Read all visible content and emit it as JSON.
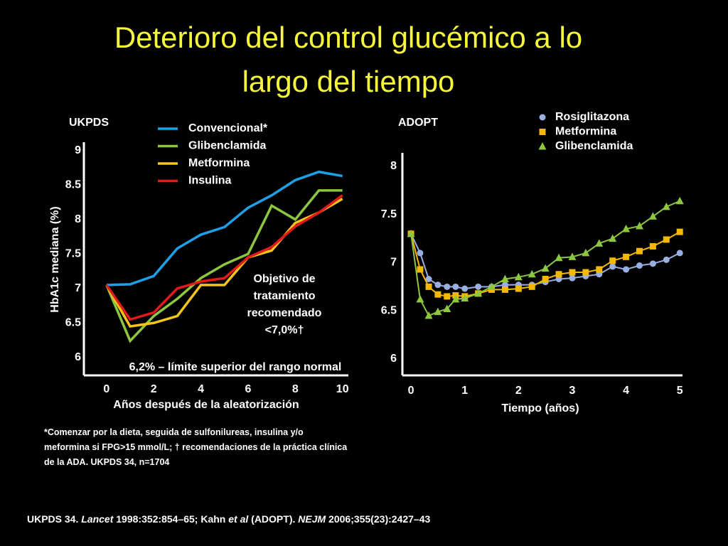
{
  "title": "Deterioro del control glucémico a lo largo del tiempo",
  "footnote": "*Comenzar por la dieta, seguida de sulfonilureas, insulina y/o meformina si FPG>15 mmol/L; † recomendaciones de la práctica clínica de la ADA. UKPDS 34, n=1704",
  "reference": [
    {
      "text": "UKPDS 34. ",
      "italic": false
    },
    {
      "text": "Lancet",
      "italic": true
    },
    {
      "text": " 1998:352:854–65; Kahn ",
      "italic": false
    },
    {
      "text": "et al",
      "italic": true
    },
    {
      "text": " (ADOPT). ",
      "italic": false
    },
    {
      "text": "NEJM",
      "italic": true
    },
    {
      "text": " 2006;355(23):2427–43",
      "italic": false
    }
  ],
  "chart_data": [
    {
      "type": "line",
      "title": "UKPDS",
      "x_label": "Años después de la aleatorización",
      "y_label": "HbA1c mediana (%)",
      "x": [
        0,
        1,
        2,
        3,
        4,
        5,
        6,
        7,
        8,
        9,
        10
      ],
      "series": [
        {
          "name": "Convencional*",
          "color": "#1ea0e6",
          "values": [
            7.05,
            7.06,
            7.18,
            7.58,
            7.78,
            7.89,
            8.17,
            8.35,
            8.57,
            8.69,
            8.63
          ]
        },
        {
          "name": "Glibenclamida",
          "color": "#8dc63f",
          "values": [
            7.05,
            6.24,
            6.6,
            6.85,
            7.15,
            7.35,
            7.5,
            8.2,
            8.0,
            8.42,
            8.42
          ]
        },
        {
          "name": "Metformina",
          "color": "#f5c518",
          "values": [
            7.05,
            6.45,
            6.5,
            6.6,
            7.05,
            7.05,
            7.45,
            7.55,
            7.95,
            8.1,
            8.3
          ]
        },
        {
          "name": "Insulina",
          "color": "#e31a1c",
          "values": [
            7.05,
            6.55,
            6.65,
            7.0,
            7.1,
            7.15,
            7.45,
            7.6,
            7.9,
            8.1,
            8.35
          ]
        }
      ],
      "xlim": [
        -0.96,
        10.25
      ],
      "ylim": [
        5.74,
        9.12
      ],
      "xticks": [
        0,
        2,
        4,
        6,
        8,
        10
      ],
      "yticks": [
        6,
        6.5,
        7,
        7.5,
        8,
        8.5,
        9
      ],
      "annotations": [
        [
          "Objetivo de",
          "tratamiento",
          "recomendado",
          "<7,0%†"
        ],
        [
          "6,2% – límite superior del rango normal"
        ]
      ]
    },
    {
      "type": "line",
      "title": "ADOPT",
      "x_label": "Tiempo (años)",
      "x": [
        0,
        0.17,
        0.33,
        0.5,
        0.67,
        0.83,
        1,
        1.25,
        1.5,
        1.75,
        2,
        2.25,
        2.5,
        2.75,
        3,
        3.25,
        3.5,
        3.75,
        4,
        4.25,
        4.5,
        4.75,
        5
      ],
      "series": [
        {
          "name": "Rosiglitazona",
          "color": "#9aaee0",
          "marker": "circle",
          "values": [
            7.3,
            7.1,
            6.83,
            6.77,
            6.75,
            6.75,
            6.73,
            6.75,
            6.75,
            6.77,
            6.77,
            6.77,
            6.8,
            6.83,
            6.84,
            6.86,
            6.88,
            6.96,
            6.93,
            6.97,
            6.99,
            7.03,
            7.1
          ]
        },
        {
          "name": "Metformina",
          "color": "#f5b800",
          "marker": "square",
          "values": [
            7.3,
            6.93,
            6.75,
            6.67,
            6.65,
            6.66,
            6.65,
            6.68,
            6.72,
            6.72,
            6.73,
            6.75,
            6.83,
            6.88,
            6.9,
            6.9,
            6.93,
            7.02,
            7.06,
            7.12,
            7.17,
            7.24,
            7.32
          ]
        },
        {
          "name": "Glibenclamida",
          "color": "#8dc63f",
          "marker": "triangle",
          "values": [
            7.3,
            6.62,
            6.45,
            6.49,
            6.52,
            6.62,
            6.63,
            6.68,
            6.75,
            6.83,
            6.85,
            6.88,
            6.94,
            7.05,
            7.06,
            7.1,
            7.2,
            7.25,
            7.35,
            7.38,
            7.48,
            7.58,
            7.64
          ]
        }
      ],
      "xlim": [
        -0.16,
        5.05
      ],
      "ylim": [
        5.83,
        8.14
      ],
      "xticks": [
        0,
        1,
        2,
        3,
        4,
        5
      ],
      "yticks": [
        6,
        6.5,
        7,
        7.5,
        8
      ]
    }
  ]
}
